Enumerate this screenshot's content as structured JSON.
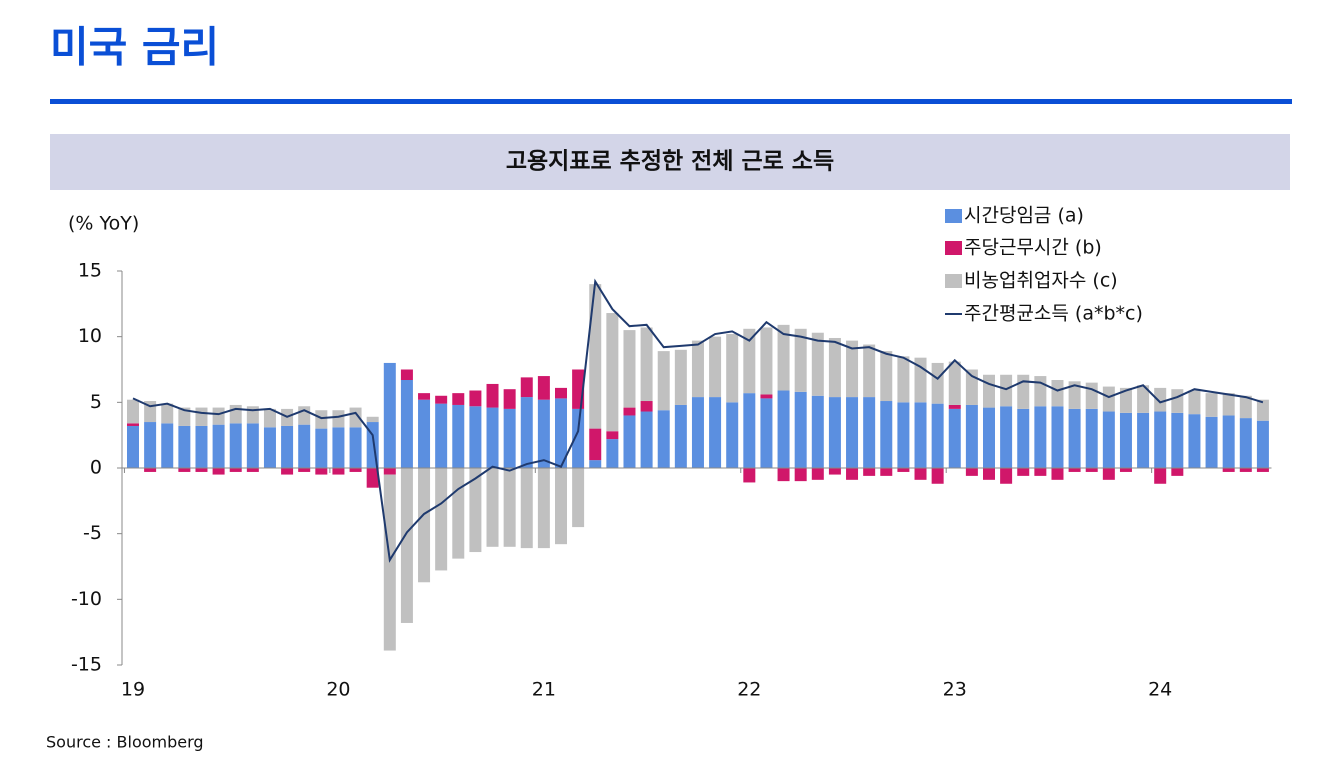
{
  "header": {
    "title": "미국 금리"
  },
  "source": "Source : Bloomberg",
  "chart_data": {
    "type": "bar",
    "title": "고용지표로 추정한 전체 근로 소득",
    "y_label": "(% YoY)",
    "categories": [
      "19",
      null,
      null,
      null,
      null,
      null,
      null,
      null,
      null,
      null,
      null,
      null,
      "20",
      null,
      null,
      null,
      null,
      null,
      null,
      null,
      null,
      null,
      null,
      null,
      "21",
      null,
      null,
      null,
      null,
      null,
      null,
      null,
      null,
      null,
      null,
      null,
      "22",
      null,
      null,
      null,
      null,
      null,
      null,
      null,
      null,
      null,
      null,
      null,
      "23",
      null,
      null,
      null,
      null,
      null,
      null,
      null,
      null,
      null,
      null,
      null,
      "24",
      null,
      null,
      null,
      null,
      null,
      null
    ],
    "ylim": [
      -15,
      15
    ],
    "yticks": [
      15,
      10,
      5,
      0,
      -5,
      -10,
      -15
    ],
    "stacked": true,
    "series": [
      {
        "name": "시간당임금 (a)",
        "type": "bar",
        "color": "#5b8fe0",
        "values": [
          3.2,
          3.5,
          3.4,
          3.2,
          3.2,
          3.3,
          3.4,
          3.4,
          3.1,
          3.2,
          3.3,
          3.0,
          3.1,
          3.1,
          3.5,
          8.0,
          6.7,
          5.2,
          4.9,
          4.8,
          4.7,
          4.6,
          4.5,
          5.4,
          5.2,
          5.3,
          4.5,
          0.6,
          2.2,
          4.0,
          4.3,
          4.4,
          4.8,
          5.4,
          5.4,
          5.0,
          5.7,
          5.3,
          5.9,
          5.8,
          5.5,
          5.4,
          5.4,
          5.4,
          5.1,
          5.0,
          5.0,
          4.9,
          4.5,
          4.8,
          4.6,
          4.7,
          4.5,
          4.7,
          4.7,
          4.5,
          4.5,
          4.3,
          4.2,
          4.2,
          4.3,
          4.2,
          4.1,
          3.9,
          4.0,
          3.8,
          3.6
        ]
      },
      {
        "name": "주당근무시간 (b)",
        "type": "bar",
        "color": "#d0176a",
        "values": [
          0.2,
          -0.3,
          0,
          -0.3,
          -0.3,
          -0.5,
          -0.3,
          -0.3,
          0,
          -0.5,
          -0.3,
          -0.5,
          -0.5,
          -0.3,
          -1.5,
          -0.5,
          0.8,
          0.5,
          0.6,
          0.9,
          1.2,
          1.8,
          1.5,
          1.5,
          1.8,
          0.8,
          3.0,
          2.4,
          0.6,
          0.6,
          0.8,
          0,
          0,
          0,
          0,
          0,
          -1.1,
          0.3,
          -1.0,
          -1.0,
          -0.9,
          -0.5,
          -0.9,
          -0.6,
          -0.6,
          -0.3,
          -0.9,
          -1.2,
          0.3,
          -0.6,
          -0.9,
          -1.2,
          -0.6,
          -0.6,
          -0.9,
          -0.3,
          -0.3,
          -0.9,
          -0.3,
          0,
          -1.2,
          -0.6,
          0,
          0,
          -0.3,
          -0.3,
          -0.3
        ]
      },
      {
        "name": "비농업취업자수 (c)",
        "type": "bar",
        "color": "#c0c0c0",
        "values": [
          1.8,
          1.6,
          1.5,
          1.4,
          1.4,
          1.3,
          1.4,
          1.3,
          1.4,
          1.3,
          1.4,
          1.4,
          1.3,
          1.5,
          0.4,
          -13.4,
          -11.8,
          -8.7,
          -7.8,
          -6.9,
          -6.4,
          -6.0,
          -6.0,
          -6.1,
          -6.1,
          -5.8,
          -4.5,
          11.0,
          9.0,
          5.9,
          5.6,
          4.5,
          4.2,
          4.3,
          4.6,
          5.2,
          4.9,
          5.1,
          5.0,
          4.8,
          4.8,
          4.5,
          4.3,
          4.0,
          3.8,
          3.5,
          3.4,
          3.1,
          3.3,
          2.7,
          2.5,
          2.4,
          2.6,
          2.3,
          2.0,
          2.1,
          2.0,
          1.9,
          1.9,
          2.1,
          1.8,
          1.8,
          1.8,
          1.8,
          1.7,
          1.7,
          1.6
        ]
      },
      {
        "name": "주간평균소득 (a*b*c)",
        "type": "line",
        "color": "#1f3a6e",
        "values": [
          5.3,
          4.7,
          4.9,
          4.4,
          4.2,
          4.1,
          4.5,
          4.4,
          4.5,
          3.9,
          4.4,
          3.8,
          3.9,
          4.2,
          2.5,
          -7.0,
          -4.9,
          -3.5,
          -2.7,
          -1.6,
          -0.8,
          0.1,
          -0.2,
          0.3,
          0.6,
          0.1,
          2.8,
          14.2,
          12.1,
          10.8,
          10.9,
          9.2,
          9.3,
          9.4,
          10.2,
          10.4,
          9.7,
          11.1,
          10.2,
          10.0,
          9.7,
          9.6,
          9.1,
          9.2,
          8.7,
          8.4,
          7.7,
          6.8,
          8.2,
          7.0,
          6.4,
          6.0,
          6.6,
          6.5,
          5.9,
          6.3,
          6.0,
          5.4,
          5.9,
          6.3,
          5.0,
          5.4,
          6.0,
          5.8,
          5.6,
          5.4,
          5.0
        ]
      }
    ]
  }
}
